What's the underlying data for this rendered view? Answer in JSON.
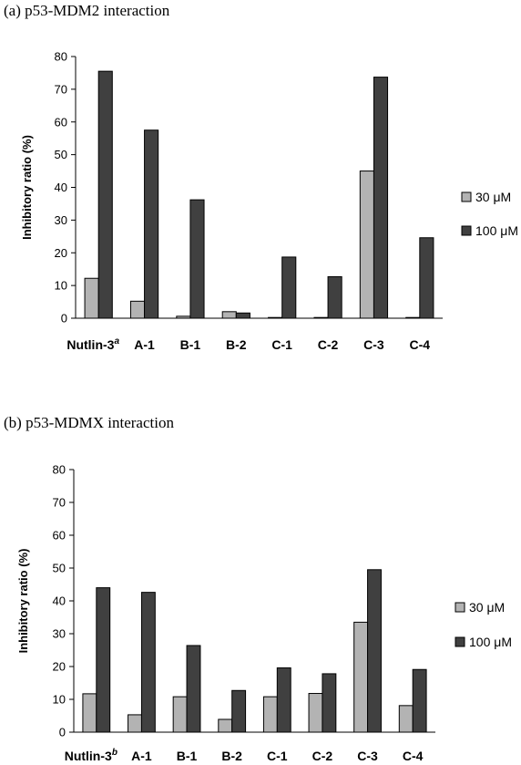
{
  "colors": {
    "series_30": "#b3b3b3",
    "series_100": "#404040",
    "bar_edge": "#000000"
  },
  "chart_data": [
    {
      "type": "bar",
      "title": "(a) p53-MDM2 interaction",
      "ylabel": "Inhibitory ratio (%)",
      "xlabel": "",
      "ylim": [
        0,
        80
      ],
      "yticks": [
        0,
        10,
        20,
        30,
        40,
        50,
        60,
        70,
        80
      ],
      "grid": false,
      "legend": "right",
      "categories": [
        "Nutlin-3",
        "A-1",
        "B-1",
        "B-2",
        "C-1",
        "C-2",
        "C-3",
        "C-4"
      ],
      "first_category_superscript": "a",
      "series": [
        {
          "name": "30 μM",
          "values": [
            12.2,
            5.2,
            0.6,
            2.0,
            0.2,
            0.2,
            45.0,
            0.2
          ]
        },
        {
          "name": "100 μM",
          "values": [
            75.5,
            57.5,
            36.2,
            1.6,
            18.7,
            12.7,
            73.7,
            24.6
          ]
        }
      ]
    },
    {
      "type": "bar",
      "title": "(b) p53-MDMX interaction",
      "ylabel": "Inhibitory ratio (%)",
      "xlabel": "",
      "ylim": [
        0,
        80
      ],
      "yticks": [
        0,
        10,
        20,
        30,
        40,
        50,
        60,
        70,
        80
      ],
      "grid": false,
      "legend": "right",
      "categories": [
        "Nutlin-3",
        "A-1",
        "B-1",
        "B-2",
        "C-1",
        "C-2",
        "C-3",
        "C-4"
      ],
      "first_category_superscript": "b",
      "series": [
        {
          "name": "30 μM",
          "values": [
            11.7,
            5.3,
            10.8,
            3.9,
            10.8,
            11.8,
            33.5,
            8.1
          ]
        },
        {
          "name": "100 μM",
          "values": [
            44.0,
            42.6,
            26.4,
            12.7,
            19.6,
            17.8,
            49.5,
            19.1
          ]
        }
      ]
    }
  ]
}
